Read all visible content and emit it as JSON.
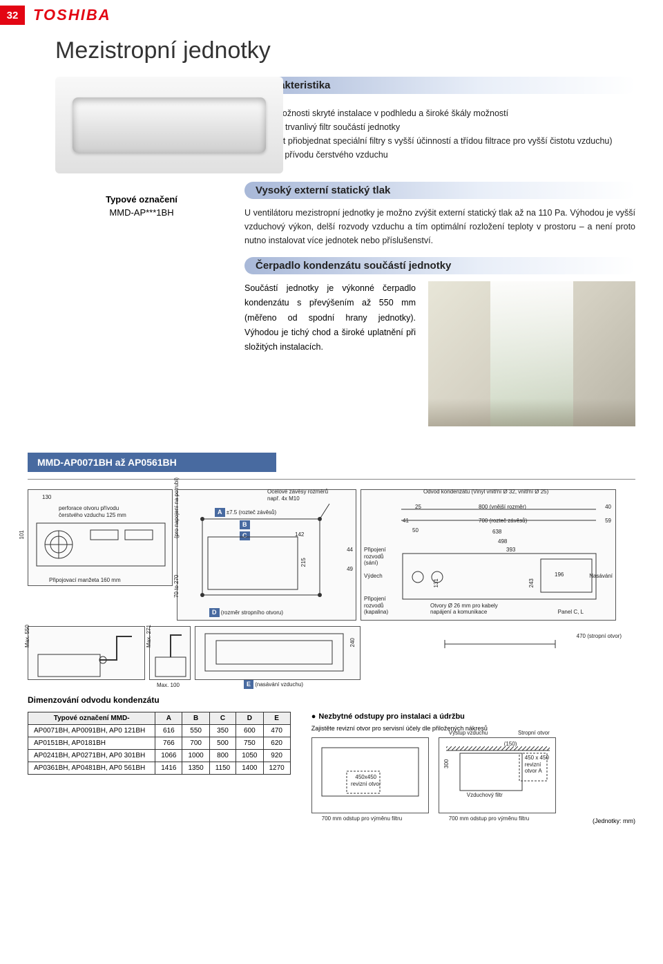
{
  "header": {
    "page_number": "32",
    "brand": "TOSHIBA"
  },
  "title": "Mezistropní jednotky",
  "char": {
    "heading": "Charakteristika",
    "lines": [
      "- Luxus možnosti skryté instalace v podhledu a široké škály možností",
      "- Základní trvanlivý filtr součástí jednotky",
      "  (možnost přiobjednat speciální filtry s vyšší účinností a třídou filtrace pro vyšší čistotu vzduchu)",
      "- Možnost přívodu čerstvého vzduchu"
    ]
  },
  "model": {
    "label": "Typové označení",
    "code": "MMD-AP***1BH"
  },
  "static": {
    "heading": "Vysoký externí statický tlak",
    "text": "U ventilátoru mezistropní jednotky je možno zvýšit externí statický tlak až na 110 Pa. Výhodou je vyšší vzduchový výkon, delší rozvody vzduchu a tím optimální rozložení teploty v prostoru – a není proto nutno instalovat více jednotek nebo příslušenství."
  },
  "pump": {
    "heading": "Čerpadlo kondenzátu součástí jednotky",
    "text": "Součástí jednotky je výkonné čerpadlo kondenzátu s převýšením až 550 mm (měřeno od spodní hrany jednotky). Výhodou je tichý chod a široké uplatnění při složitých instalacích."
  },
  "range_bar": "MMD-AP0071BH až AP0561BH",
  "diagram_labels": {
    "left_130": "130",
    "left_101": "101",
    "left_perf": "perforace otvoru přívodu čerstvého vzduchu 125 mm",
    "left_coupling": "Připojovací manžeta 160 mm",
    "mid_duct_conn": "(pro napojení na potrubí)",
    "mid_70_270": "70 to 270",
    "mid_hang": "Ocelové závěsy rozměrů např. 4x M10",
    "mid_A": "A ±7.5 (rozteč závěsů)",
    "mid_B": "B",
    "mid_C": "C",
    "mid_142": "142",
    "mid_215": "215",
    "mid_44": "44",
    "mid_49": "49",
    "mid_D": "D (rozměr stropního otvoru)",
    "r_cond": "Odvod kondenzátu (Vinyl vnitřní Ø 32, vnitřní Ø 25)",
    "r_25": "25",
    "r_41": "41",
    "r_50": "50",
    "r_800": "800 (vnější rozměr)",
    "r_700": "700 (rozteč závěsů)",
    "r_638": "638",
    "r_498": "498",
    "r_393": "393",
    "r_40": "40",
    "r_59": "59",
    "r_131": "131",
    "r_243": "243",
    "r_196": "196",
    "r_suction": "Připojení rozvodů (sání)",
    "r_exhaust": "Výdech",
    "r_liquid": "Připojení rozvodů (kapalina)",
    "r_holes": "Otvory Ø 26 mm pro kabely napájení a komunikace",
    "r_panel": "Panel C, L",
    "r_nasavani": "Nasávání",
    "s_max550": "Max. 550",
    "s_max271": "Max. 271",
    "s_max100": "Max. 100",
    "s_240": "240",
    "s_E": "E (nasávání vzduchu)",
    "s_470": "470 (stropní otvor)"
  },
  "dim_heading": "Dimenzování odvodu kondenzátu",
  "dim_table": {
    "cols": [
      "Typové označení   MMD-",
      "A",
      "B",
      "C",
      "D",
      "E"
    ],
    "rows": [
      [
        "AP0071BH, AP0091BH, AP0 121BH",
        "616",
        "550",
        "350",
        "600",
        "470"
      ],
      [
        "AP0151BH, AP0181BH",
        "766",
        "700",
        "500",
        "750",
        "620"
      ],
      [
        "AP0241BH, AP0271BH, AP0 301BH",
        "1066",
        "1000",
        "800",
        "1050",
        "920"
      ],
      [
        "AP0361BH, AP0481BH, AP0 561BH",
        "1416",
        "1350",
        "1150",
        "1400",
        "1270"
      ]
    ]
  },
  "install": {
    "title": "Nezbytné odstupy pro instalaci a údržbu",
    "sub": "Zajistěte revizní otvor pro servisní účely dle přiložených nákresů",
    "left_rev": "450x450 revizní otvor",
    "left_700": "700 mm odstup pro výměnu filtru",
    "right_out": "Výstup vzduchu",
    "right_ceil": "Stropní otvor",
    "right_150": "(150)",
    "right_450": "450 x 450 revizní otvor A",
    "right_300": "300",
    "right_filter": "Vzduchový filtr",
    "right_700": "700 mm odstup pro výměnu filtru"
  },
  "units": "(Jednotky: mm)",
  "colors": {
    "red": "#e30613",
    "blue": "#486aa0",
    "pill_start": "#a8b8d8"
  }
}
